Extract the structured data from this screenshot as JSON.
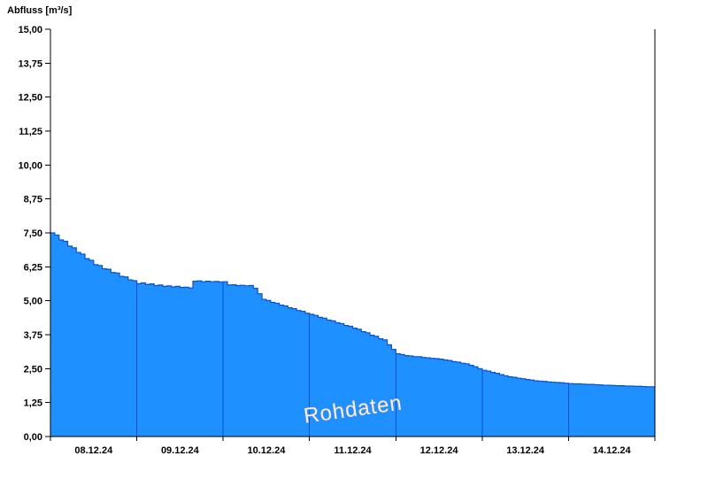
{
  "chart_data": {
    "type": "area",
    "title": "Abfluss [m³/s]",
    "ylabel": "Abfluss [m³/s]",
    "xlabel": "",
    "watermark": "Rohdaten",
    "series_name": "Rohdaten",
    "legend": "none",
    "grid": "vertical-day-separators-inside-area-only",
    "ylim": [
      0,
      15
    ],
    "x_span_days": 7,
    "x_tick_labels": [
      "08.12.24",
      "09.12.24",
      "10.12.24",
      "11.12.24",
      "12.12.24",
      "13.12.24",
      "14.12.24"
    ],
    "y_ticks": [
      0,
      1.25,
      2.5,
      3.75,
      5,
      6.25,
      7.5,
      8.75,
      10,
      11.25,
      12.5,
      13.75,
      15
    ],
    "y_tick_labels": [
      "0,00",
      "1,25",
      "2,50",
      "3,75",
      "5,00",
      "6,25",
      "7,50",
      "8,75",
      "10,00",
      "11,25",
      "12,50",
      "13,75",
      "15,00"
    ],
    "dt_days": 0.05,
    "values": [
      7.5,
      7.42,
      7.24,
      7.19,
      7.01,
      6.95,
      6.78,
      6.72,
      6.55,
      6.49,
      6.33,
      6.3,
      6.18,
      6.16,
      6.04,
      6.02,
      5.9,
      5.88,
      5.77,
      5.74,
      5.63,
      5.66,
      5.6,
      5.62,
      5.56,
      5.58,
      5.53,
      5.55,
      5.51,
      5.53,
      5.49,
      5.5,
      5.47,
      5.72,
      5.73,
      5.7,
      5.72,
      5.7,
      5.71,
      5.69,
      5.7,
      5.58,
      5.59,
      5.56,
      5.57,
      5.55,
      5.56,
      5.46,
      5.26,
      5.05,
      5.01,
      4.94,
      4.91,
      4.84,
      4.81,
      4.74,
      4.71,
      4.64,
      4.61,
      4.54,
      4.5,
      4.46,
      4.39,
      4.36,
      4.29,
      4.26,
      4.19,
      4.16,
      4.09,
      4.06,
      3.99,
      3.95,
      3.86,
      3.82,
      3.73,
      3.69,
      3.6,
      3.56,
      3.38,
      3.21,
      3.05,
      3.02,
      2.98,
      2.97,
      2.94,
      2.94,
      2.91,
      2.9,
      2.88,
      2.87,
      2.85,
      2.82,
      2.8,
      2.76,
      2.74,
      2.7,
      2.68,
      2.62,
      2.57,
      2.5,
      2.44,
      2.41,
      2.36,
      2.33,
      2.28,
      2.24,
      2.2,
      2.18,
      2.15,
      2.13,
      2.1,
      2.08,
      2.05,
      2.04,
      2.03,
      2.01,
      2.0,
      1.99,
      1.98,
      1.96,
      1.95,
      1.94,
      1.94,
      1.93,
      1.92,
      1.92,
      1.91,
      1.9,
      1.89,
      1.89,
      1.88,
      1.87,
      1.87,
      1.86,
      1.86,
      1.85,
      1.85,
      1.84,
      1.83,
      1.83,
      1.82
    ],
    "colors": {
      "fill": "#1e90ff",
      "line": "#0a50d0",
      "axis": "#000000",
      "watermark_fill": "#ededed",
      "watermark_outline": "#8c8c8c"
    }
  }
}
